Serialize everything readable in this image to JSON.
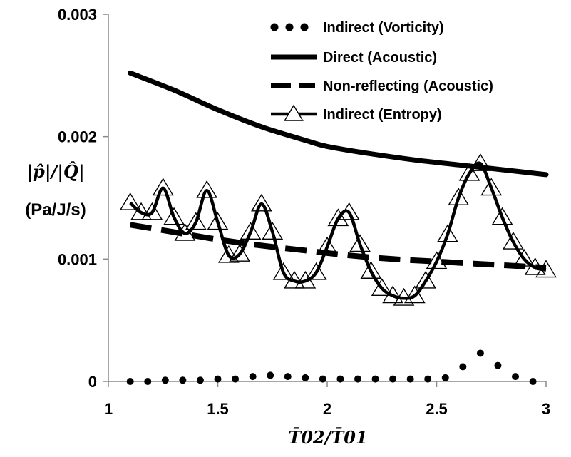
{
  "chart_data": {
    "type": "line",
    "xlabel": "T̄02/T̄01",
    "ylabel": "|p̂|/|Q̂|",
    "ylabel_unit": "(Pa/J/s)",
    "xlim": [
      1,
      3
    ],
    "ylim": [
      0,
      0.003
    ],
    "x_ticks": [
      1,
      1.5,
      2,
      2.5,
      3
    ],
    "x_tick_labels": [
      "1",
      "1.5",
      "2",
      "2.5",
      "3"
    ],
    "y_ticks": [
      0,
      0.001,
      0.002,
      0.003
    ],
    "y_tick_labels": [
      "0",
      "0.001",
      "0.002",
      "0.003"
    ],
    "grid": false,
    "legend_position": "top-right",
    "series": [
      {
        "name": "Indirect (Vorticity)",
        "style": "dotted-markers",
        "color": "#000000",
        "x": [
          1.1,
          1.18,
          1.26,
          1.34,
          1.42,
          1.5,
          1.58,
          1.66,
          1.74,
          1.82,
          1.9,
          1.98,
          2.06,
          2.14,
          2.22,
          2.3,
          2.38,
          2.46,
          2.54,
          2.62,
          2.7,
          2.78,
          2.86,
          2.94
        ],
        "y": [
          0.0,
          0.0,
          1e-05,
          1e-05,
          1e-05,
          2e-05,
          2e-05,
          4e-05,
          5e-05,
          4e-05,
          3e-05,
          2e-05,
          2e-05,
          2e-05,
          2e-05,
          2e-05,
          2e-05,
          2e-05,
          3e-05,
          0.00012,
          0.00023,
          0.00013,
          4e-05,
          0.0
        ]
      },
      {
        "name": "Direct (Acoustic)",
        "style": "solid-thick",
        "color": "#000000",
        "x": [
          1.1,
          1.3,
          1.5,
          1.7,
          1.9,
          2.0,
          2.2,
          2.4,
          2.6,
          2.8,
          3.0
        ],
        "y": [
          0.00252,
          0.00238,
          0.00222,
          0.00208,
          0.00197,
          0.00192,
          0.00186,
          0.00181,
          0.00177,
          0.00173,
          0.00169
        ]
      },
      {
        "name": "Non-reflecting (Acoustic)",
        "style": "dashed-thick",
        "color": "#000000",
        "x": [
          1.1,
          1.3,
          1.5,
          1.7,
          1.9,
          2.1,
          2.3,
          2.5,
          2.7,
          2.9,
          3.0
        ],
        "y": [
          0.00128,
          0.00122,
          0.00116,
          0.00111,
          0.00107,
          0.00103,
          0.001,
          0.00098,
          0.00096,
          0.00094,
          0.00093
        ]
      },
      {
        "name": "Indirect (Entropy)",
        "style": "solid-triangles",
        "color": "#000000",
        "x": [
          1.1,
          1.15,
          1.2,
          1.25,
          1.3,
          1.35,
          1.4,
          1.45,
          1.5,
          1.55,
          1.6,
          1.65,
          1.7,
          1.75,
          1.8,
          1.85,
          1.9,
          1.95,
          2.0,
          2.05,
          2.1,
          2.15,
          2.2,
          2.25,
          2.3,
          2.35,
          2.4,
          2.45,
          2.5,
          2.55,
          2.6,
          2.65,
          2.7,
          2.75,
          2.8,
          2.85,
          2.9,
          2.95,
          3.0
        ],
        "y": [
          0.00146,
          0.00138,
          0.00138,
          0.00158,
          0.00134,
          0.00121,
          0.0013,
          0.00156,
          0.0013,
          0.00103,
          0.00104,
          0.00122,
          0.00145,
          0.00122,
          0.00089,
          0.00082,
          0.00082,
          0.00089,
          0.0011,
          0.00133,
          0.00138,
          0.00112,
          0.0009,
          0.00076,
          0.0007,
          0.00068,
          0.0007,
          0.00082,
          0.00098,
          0.0012,
          0.0015,
          0.0017,
          0.00178,
          0.00158,
          0.00134,
          0.00114,
          0.001,
          0.00093,
          0.00091
        ]
      }
    ]
  }
}
